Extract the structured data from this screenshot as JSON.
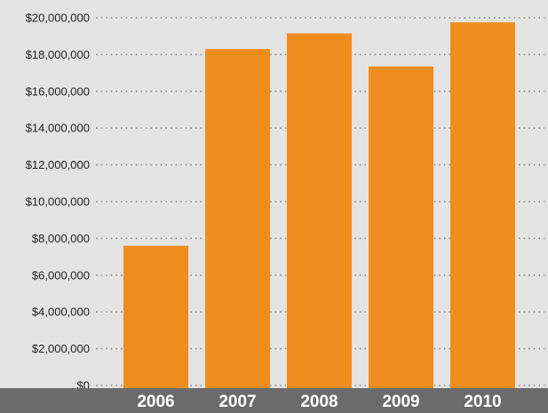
{
  "chart_data": {
    "type": "bar",
    "categories": [
      "2006",
      "2007",
      "2008",
      "2009",
      "2010"
    ],
    "values": [
      7600000,
      18300000,
      19150000,
      17350000,
      19750000
    ],
    "ylim": [
      0,
      20000000
    ],
    "yticks": [
      {
        "value": 0,
        "label": "$0"
      },
      {
        "value": 2000000,
        "label": "$2,000,000"
      },
      {
        "value": 4000000,
        "label": "$4,000,000"
      },
      {
        "value": 6000000,
        "label": "$6,000,000"
      },
      {
        "value": 8000000,
        "label": "$8,000,000"
      },
      {
        "value": 10000000,
        "label": "$10,000,000"
      },
      {
        "value": 12000000,
        "label": "$12,000,000"
      },
      {
        "value": 14000000,
        "label": "$14,000,000"
      },
      {
        "value": 16000000,
        "label": "$16,000,000"
      },
      {
        "value": 18000000,
        "label": "$18,000,000"
      },
      {
        "value": 20000000,
        "label": "$20,000,000"
      }
    ],
    "title": "",
    "xlabel": "",
    "ylabel": "",
    "grid": "dotted horizontal",
    "colors": {
      "bar": "#ef8c1e",
      "background": "#e3e3e3",
      "axis_band": "#6b6b6b",
      "grid": "#888888",
      "tick_text": "#222222",
      "category_text": "#ffffff"
    }
  }
}
